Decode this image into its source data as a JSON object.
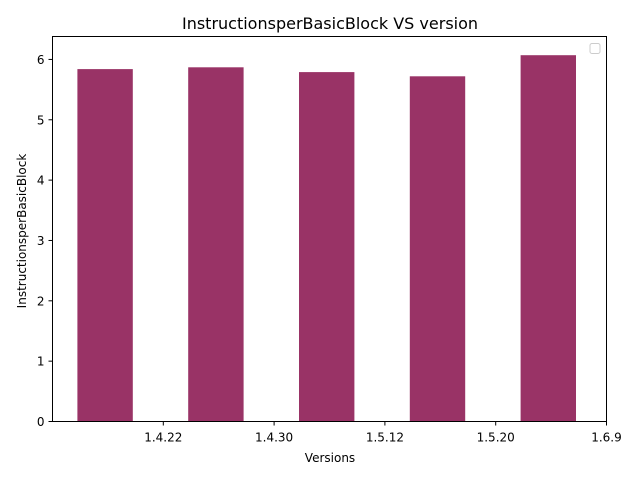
{
  "chart_data": {
    "type": "bar",
    "title": "InstructionsperBasicBlock VS version",
    "xlabel": "Versions",
    "ylabel": "InstructionsperBasicBlock",
    "x_tick_labels": [
      "1.4.22",
      "1.4.30",
      "1.5.12",
      "1.5.20",
      "1.6.9"
    ],
    "values": [
      5.84,
      5.87,
      5.79,
      5.72,
      6.07
    ],
    "ylim": [
      0,
      6.38
    ],
    "y_ticks": [
      0,
      1,
      2,
      3,
      4,
      5,
      6
    ],
    "bar_color": "#993366",
    "grid": false,
    "legend": {
      "placement": "top-right",
      "entries": []
    }
  }
}
